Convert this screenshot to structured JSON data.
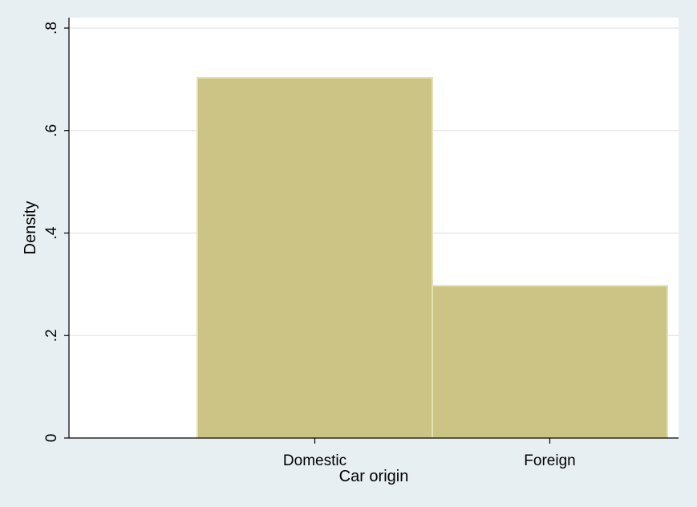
{
  "chart_data": {
    "type": "bar",
    "title": "",
    "xlabel": "Car origin",
    "ylabel": "Density",
    "categories": [
      "Domestic",
      "Foreign"
    ],
    "values": [
      0.703,
      0.297
    ],
    "ylim": [
      0,
      0.8
    ],
    "yticks": [
      0,
      0.2,
      0.4,
      0.6,
      0.8
    ],
    "ytick_labels": [
      "0",
      ".2",
      ".4",
      ".6",
      ".8"
    ],
    "grid": true,
    "legend": "none",
    "colors": {
      "bar_fill": "#cbc484",
      "bar_stroke": "#e4dfb4",
      "background": "#e8eff2",
      "plot_background": "#ffffff",
      "grid": "#e6eaec",
      "axis": "#000000"
    }
  }
}
